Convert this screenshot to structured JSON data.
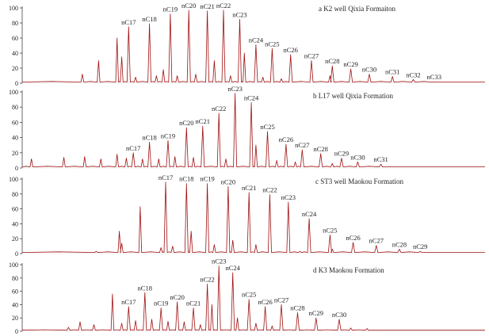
{
  "chart_data": [
    {
      "type": "line",
      "title": "a   K2 well Qixia Formaiton",
      "yticks": [
        "0",
        "20",
        "40",
        "60",
        "80",
        "100"
      ],
      "ylim": [
        0,
        100
      ],
      "xlim": [
        0,
        100
      ],
      "color": "#a01010",
      "peaks": [
        {
          "label": "nC17",
          "x": 23.0,
          "y": 75
        },
        {
          "label": "nC18",
          "x": 27.5,
          "y": 79
        },
        {
          "label": "nC19",
          "x": 32.0,
          "y": 92
        },
        {
          "label": "nC20",
          "x": 36.0,
          "y": 97
        },
        {
          "label": "nC21",
          "x": 40.0,
          "y": 96
        },
        {
          "label": "nC22",
          "x": 43.5,
          "y": 97
        },
        {
          "label": "nC23",
          "x": 47.0,
          "y": 85
        },
        {
          "label": "nC24",
          "x": 50.5,
          "y": 51
        },
        {
          "label": "nC25",
          "x": 54.0,
          "y": 46
        },
        {
          "label": "nC26",
          "x": 58.0,
          "y": 38
        },
        {
          "label": "nC27",
          "x": 62.5,
          "y": 30
        },
        {
          "label": "nC28",
          "x": 67.0,
          "y": 23
        },
        {
          "label": "nC29",
          "x": 71.0,
          "y": 19
        },
        {
          "label": "nC30",
          "x": 75.0,
          "y": 12
        },
        {
          "label": "nC31",
          "x": 80.0,
          "y": 9
        },
        {
          "label": "nC32",
          "x": 84.5,
          "y": 5
        },
        {
          "label": "nC33",
          "x": 89.0,
          "y": 2
        }
      ],
      "minor_peaks": [
        {
          "x": 13.0,
          "y": 12
        },
        {
          "x": 16.5,
          "y": 30
        },
        {
          "x": 20.5,
          "y": 60
        },
        {
          "x": 21.5,
          "y": 35
        },
        {
          "x": 24.5,
          "y": 8
        },
        {
          "x": 29.0,
          "y": 10
        },
        {
          "x": 30.5,
          "y": 18
        },
        {
          "x": 33.5,
          "y": 10
        },
        {
          "x": 37.5,
          "y": 12
        },
        {
          "x": 41.5,
          "y": 30
        },
        {
          "x": 45.0,
          "y": 10
        },
        {
          "x": 48.0,
          "y": 40
        },
        {
          "x": 52.0,
          "y": 8
        },
        {
          "x": 56.0,
          "y": 6
        },
        {
          "x": 66.5,
          "y": 10
        }
      ],
      "baseline_end": 100
    },
    {
      "type": "line",
      "title": "b   L17  well  Qixia  Formation",
      "yticks": [
        "0",
        "20",
        "40",
        "60",
        "80",
        "100"
      ],
      "ylim": [
        0,
        100
      ],
      "xlim": [
        0,
        100
      ],
      "color": "#a01010",
      "peaks": [
        {
          "label": "nC17",
          "x": 24.0,
          "y": 20
        },
        {
          "label": "nC18",
          "x": 27.5,
          "y": 34
        },
        {
          "label": "nC19",
          "x": 31.5,
          "y": 36
        },
        {
          "label": "nC20",
          "x": 35.5,
          "y": 53
        },
        {
          "label": "nC21",
          "x": 39.0,
          "y": 55
        },
        {
          "label": "nC22",
          "x": 42.5,
          "y": 72
        },
        {
          "label": "nC23",
          "x": 46.0,
          "y": 98
        },
        {
          "label": "nC24",
          "x": 49.5,
          "y": 86
        },
        {
          "label": "nC25",
          "x": 53.0,
          "y": 48
        },
        {
          "label": "nC26",
          "x": 57.0,
          "y": 31
        },
        {
          "label": "nC27",
          "x": 60.5,
          "y": 24
        },
        {
          "label": "nC28",
          "x": 64.5,
          "y": 19
        },
        {
          "label": "nC29",
          "x": 69.0,
          "y": 13
        },
        {
          "label": "nC30",
          "x": 72.5,
          "y": 8
        },
        {
          "label": "nC31",
          "x": 77.5,
          "y": 5
        }
      ],
      "minor_peaks": [
        {
          "x": 2.0,
          "y": 12
        },
        {
          "x": 9.0,
          "y": 14
        },
        {
          "x": 13.5,
          "y": 15
        },
        {
          "x": 17.0,
          "y": 12
        },
        {
          "x": 20.5,
          "y": 18
        },
        {
          "x": 22.5,
          "y": 13
        },
        {
          "x": 26.0,
          "y": 12
        },
        {
          "x": 29.5,
          "y": 12
        },
        {
          "x": 33.0,
          "y": 15
        },
        {
          "x": 37.0,
          "y": 14
        },
        {
          "x": 44.0,
          "y": 12
        },
        {
          "x": 50.5,
          "y": 30
        },
        {
          "x": 55.0,
          "y": 10
        },
        {
          "x": 59.0,
          "y": 8
        },
        {
          "x": 67.0,
          "y": 6
        }
      ],
      "baseline_end": 100
    },
    {
      "type": "line",
      "title": "c   ST3 well Maokou  Formation",
      "yticks": [
        "0",
        "20",
        "40",
        "60",
        "80",
        "100"
      ],
      "ylim": [
        0,
        100
      ],
      "xlim": [
        0,
        100
      ],
      "color": "#a01010",
      "peaks": [
        {
          "label": "nC17",
          "x": 31.0,
          "y": 96
        },
        {
          "label": "nC18",
          "x": 35.5,
          "y": 94
        },
        {
          "label": "nC19",
          "x": 40.0,
          "y": 94
        },
        {
          "label": "nC20",
          "x": 44.5,
          "y": 90
        },
        {
          "label": "nC21",
          "x": 49.0,
          "y": 82
        },
        {
          "label": "nC22",
          "x": 53.5,
          "y": 79
        },
        {
          "label": "nC23",
          "x": 57.5,
          "y": 69
        },
        {
          "label": "nC24",
          "x": 62.0,
          "y": 47
        },
        {
          "label": "nC25",
          "x": 66.5,
          "y": 25
        },
        {
          "label": "nC26",
          "x": 71.5,
          "y": 15
        },
        {
          "label": "nC27",
          "x": 76.5,
          "y": 11
        },
        {
          "label": "nC28",
          "x": 81.5,
          "y": 6
        },
        {
          "label": "nC29",
          "x": 86.0,
          "y": 3
        }
      ],
      "minor_peaks": [
        {
          "x": 16.0,
          "y": 3
        },
        {
          "x": 21.0,
          "y": 30
        },
        {
          "x": 21.5,
          "y": 14
        },
        {
          "x": 25.5,
          "y": 63
        },
        {
          "x": 30.0,
          "y": 8
        },
        {
          "x": 32.5,
          "y": 10
        },
        {
          "x": 36.5,
          "y": 30
        },
        {
          "x": 41.5,
          "y": 12
        },
        {
          "x": 45.5,
          "y": 18
        },
        {
          "x": 50.5,
          "y": 12
        },
        {
          "x": 60.0,
          "y": 3
        },
        {
          "x": 67.0,
          "y": 6
        }
      ],
      "baseline_end": 100
    },
    {
      "type": "line",
      "title": "d   K3  Maokou  Formation",
      "yticks": [
        "0",
        "20",
        "40",
        "60",
        "80",
        "100"
      ],
      "ylim": [
        0,
        100
      ],
      "xlim": [
        0,
        100
      ],
      "color": "#a01010",
      "peaks": [
        {
          "label": "nC17",
          "x": 23.0,
          "y": 37
        },
        {
          "label": "nC18",
          "x": 26.5,
          "y": 58
        },
        {
          "label": "nC19",
          "x": 30.0,
          "y": 35
        },
        {
          "label": "nC20",
          "x": 33.5,
          "y": 44
        },
        {
          "label": "nC21",
          "x": 37.0,
          "y": 35
        },
        {
          "label": "nC22",
          "x": 40.0,
          "y": 71
        },
        {
          "label": "nC23",
          "x": 42.5,
          "y": 98
        },
        {
          "label": "nC24",
          "x": 45.5,
          "y": 88
        },
        {
          "label": "nC25",
          "x": 49.0,
          "y": 48
        },
        {
          "label": "nC26",
          "x": 52.5,
          "y": 37
        },
        {
          "label": "nC27",
          "x": 56.0,
          "y": 40
        },
        {
          "label": "nC28",
          "x": 59.5,
          "y": 28
        },
        {
          "label": "nC29",
          "x": 63.5,
          "y": 20
        },
        {
          "label": "nC30",
          "x": 68.5,
          "y": 18
        }
      ],
      "minor_peaks": [
        {
          "x": 10.0,
          "y": 6
        },
        {
          "x": 12.5,
          "y": 14
        },
        {
          "x": 15.5,
          "y": 10
        },
        {
          "x": 19.5,
          "y": 56
        },
        {
          "x": 21.5,
          "y": 12
        },
        {
          "x": 24.5,
          "y": 16
        },
        {
          "x": 28.0,
          "y": 18
        },
        {
          "x": 31.5,
          "y": 15
        },
        {
          "x": 35.0,
          "y": 14
        },
        {
          "x": 38.5,
          "y": 10
        },
        {
          "x": 41.0,
          "y": 40
        },
        {
          "x": 46.5,
          "y": 20
        },
        {
          "x": 50.5,
          "y": 12
        },
        {
          "x": 54.0,
          "y": 8
        },
        {
          "x": 71.0,
          "y": 5
        },
        {
          "x": 74.5,
          "y": 4
        }
      ],
      "baseline_end": 100
    }
  ]
}
